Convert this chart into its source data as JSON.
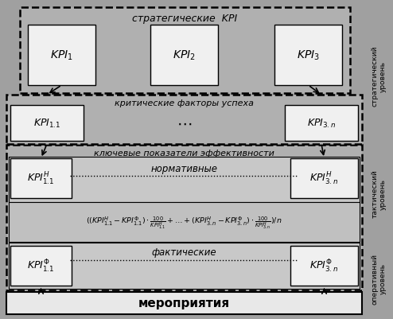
{
  "bg_color": "#a0a0a0",
  "box_fill_light": "#f0f0f0",
  "box_fill_mero": "#e8e8e8",
  "meropriytia_label": "мероприятия",
  "strat_kpi_label": "стратегические  KPI",
  "krit_label": "критические факторы успеха",
  "kluch_label": "ключевые показатели эффективности",
  "normativnye_label": "нормативные",
  "fakticheskie_label": "фактические",
  "side_strat": "стратегический\nуровень",
  "side_tact": "тактический\nуровень",
  "side_oper": "оперативный\nуровень",
  "formula": "((KPI_{1.1}^{H}-KPI_{1.1}^{\\Phi})\\cdot\\frac{100}{KPI_{1.1}^{H}}+\\ldots+(KPI_{3.n}^{H}-KPI_{3.n}^{\\Phi})\\cdot\\frac{100}{KPI_{3.n}^{H}})/n"
}
